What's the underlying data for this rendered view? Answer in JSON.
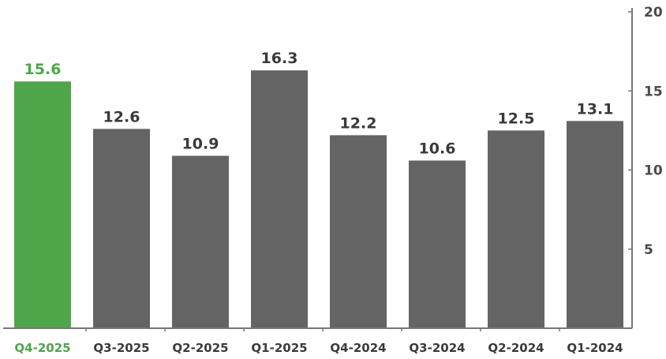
{
  "chart_data": {
    "type": "bar",
    "categories": [
      "Q4-2025",
      "Q3-2025",
      "Q2-2025",
      "Q1-2025",
      "Q4-2024",
      "Q3-2024",
      "Q2-2024",
      "Q1-2024"
    ],
    "values": [
      15.6,
      12.6,
      10.9,
      16.3,
      12.2,
      10.6,
      12.5,
      13.1
    ],
    "value_labels": [
      "15.6",
      "12.6",
      "10.9",
      "16.3",
      "12.2",
      "10.6",
      "12.5",
      "13.1"
    ],
    "highlight_index": 0,
    "ylim": [
      0,
      20
    ],
    "yticks": [
      5,
      10,
      15,
      20
    ],
    "ytick_labels": [
      "5",
      "10",
      "15",
      "20"
    ],
    "y_axis_side": "right",
    "grid": false,
    "legend": "none",
    "title": "",
    "xlabel": "",
    "ylabel": ""
  },
  "colors": {
    "highlight": "#4fa64a",
    "bar": "#646464",
    "text": "#3a3a3a",
    "axis": "#777777"
  }
}
